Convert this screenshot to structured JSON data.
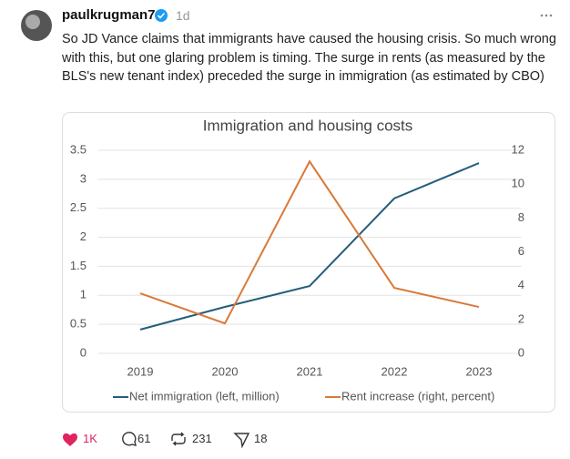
{
  "post": {
    "username": "paulkrugman7",
    "time": "1d",
    "text": "So JD Vance claims that immigrants have caused the housing crisis. So much wrong with this, but one glaring problem is timing. The surge in rents (as measured by the BLS's new tenant index) preceded the surge in immigration (as estimated by CBO)",
    "likes": "1K",
    "comments": "61",
    "reposts": "231",
    "shares": "18"
  },
  "chart_data": {
    "type": "line",
    "title": "Immigration and housing costs",
    "categories": [
      "2019",
      "2020",
      "2021",
      "2022",
      "2023"
    ],
    "series": [
      {
        "name": "Net immigration (left, million)",
        "color": "#245e7b",
        "values": [
          0.41,
          0.8,
          1.16,
          2.67,
          3.28
        ]
      },
      {
        "name": "Rent increase (right, percent)",
        "color": "#d9793a",
        "axis": "y2",
        "values": [
          3.55,
          1.77,
          11.34,
          3.87,
          2.74
        ]
      }
    ],
    "ylim": [
      0,
      3.5
    ],
    "yticks": [
      0,
      0.5,
      1,
      1.5,
      2,
      2.5,
      3,
      3.5
    ],
    "y2lim": [
      0,
      12
    ],
    "y2ticks": [
      0,
      2,
      4,
      6,
      8,
      10,
      12
    ],
    "grid": true,
    "legend": "bottom"
  }
}
